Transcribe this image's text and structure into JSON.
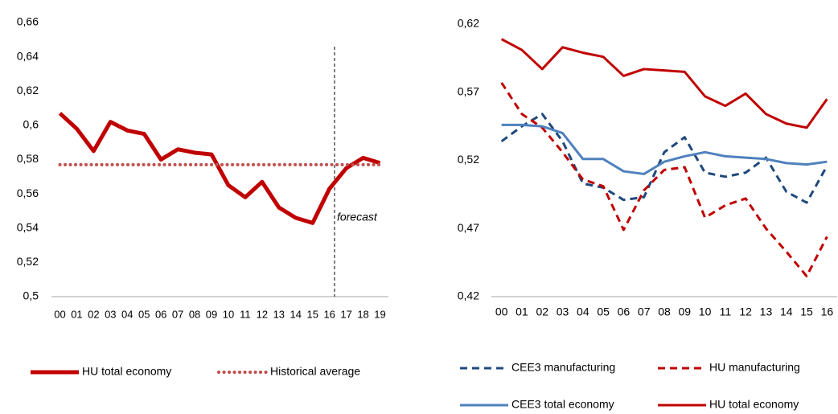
{
  "chart_data": [
    {
      "type": "line",
      "categories": [
        "00",
        "01",
        "02",
        "03",
        "04",
        "05",
        "06",
        "07",
        "08",
        "09",
        "10",
        "11",
        "12",
        "13",
        "14",
        "15",
        "16",
        "17",
        "18",
        "19"
      ],
      "series": [
        {
          "name": "HU total economy",
          "color": "#c00000",
          "style": "solid",
          "values": [
            0.607,
            0.598,
            0.585,
            0.602,
            0.597,
            0.595,
            0.58,
            0.586,
            0.584,
            0.583,
            0.565,
            0.558,
            0.567,
            0.552,
            0.546,
            0.543,
            0.563,
            0.575,
            0.581,
            0.578
          ]
        },
        {
          "name": "Historical average",
          "color": "#c0504d",
          "style": "dotted",
          "values": [
            0.577,
            0.577,
            0.577,
            0.577,
            0.577,
            0.577,
            0.577,
            0.577,
            0.577,
            0.577,
            0.577,
            0.577,
            0.577,
            0.577,
            0.577,
            0.577,
            0.577,
            0.577,
            0.577,
            0.577
          ]
        }
      ],
      "annotation": "forecast",
      "ylim": [
        0.5,
        0.66
      ],
      "yticks": [
        {
          "value": 0.5,
          "label": "0,5"
        },
        {
          "value": 0.52,
          "label": "0,52"
        },
        {
          "value": 0.54,
          "label": "0,54"
        },
        {
          "value": 0.56,
          "label": "0,56"
        },
        {
          "value": 0.58,
          "label": "0,58"
        },
        {
          "value": 0.6,
          "label": "0,6"
        },
        {
          "value": 0.62,
          "label": "0,62"
        },
        {
          "value": 0.64,
          "label": "0,64"
        },
        {
          "value": 0.66,
          "label": "0,66"
        }
      ]
    },
    {
      "type": "line",
      "categories": [
        "00",
        "01",
        "02",
        "03",
        "04",
        "05",
        "06",
        "07",
        "08",
        "09",
        "10",
        "11",
        "12",
        "13",
        "14",
        "15",
        "16"
      ],
      "series": [
        {
          "name": "CEE3 manufacturing",
          "color": "#1f497d",
          "style": "dashed",
          "values": [
            0.534,
            0.545,
            0.554,
            0.534,
            0.503,
            0.5,
            0.491,
            0.493,
            0.526,
            0.537,
            0.511,
            0.508,
            0.511,
            0.522,
            0.497,
            0.489,
            0.516
          ]
        },
        {
          "name": "HU manufacturing",
          "color": "#c00000",
          "style": "dashed",
          "values": [
            0.577,
            0.554,
            0.544,
            0.526,
            0.506,
            0.501,
            0.469,
            0.498,
            0.513,
            0.515,
            0.478,
            0.487,
            0.492,
            0.47,
            0.453,
            0.435,
            0.464
          ]
        },
        {
          "name": "CEE3 total economy",
          "color": "#4f81bd",
          "style": "solid",
          "values": [
            0.546,
            0.546,
            0.545,
            0.54,
            0.521,
            0.521,
            0.512,
            0.51,
            0.519,
            0.523,
            0.526,
            0.523,
            0.522,
            0.521,
            0.518,
            0.517,
            0.519
          ]
        },
        {
          "name": "HU total economy",
          "color": "#c00000",
          "style": "solid",
          "values": [
            0.609,
            0.601,
            0.587,
            0.603,
            0.599,
            0.596,
            0.582,
            0.587,
            0.586,
            0.585,
            0.567,
            0.56,
            0.569,
            0.554,
            0.547,
            0.544,
            0.565
          ]
        }
      ],
      "ylim": [
        0.42,
        0.62
      ],
      "yticks": [
        {
          "value": 0.42,
          "label": "0,42"
        },
        {
          "value": 0.47,
          "label": "0,47"
        },
        {
          "value": 0.52,
          "label": "0,52"
        },
        {
          "value": 0.57,
          "label": "0,57"
        },
        {
          "value": 0.62,
          "label": "0,62"
        }
      ]
    }
  ]
}
